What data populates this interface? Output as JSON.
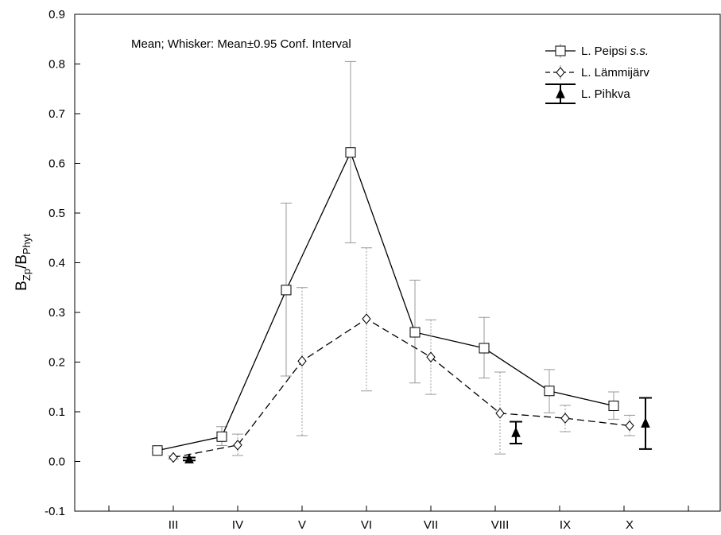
{
  "chart_data": {
    "type": "line",
    "subtitle": "Mean; Whisker: Mean±0.95 Conf. Interval",
    "ylabel": {
      "main": "B",
      "sub1": "Zp",
      "sep": "/B",
      "sub2": "Phyt"
    },
    "xlabel": "",
    "ylim": [
      -0.1,
      0.9
    ],
    "yticks": [
      "-0.1",
      "0.0",
      "0.1",
      "0.2",
      "0.3",
      "0.4",
      "0.5",
      "0.6",
      "0.7",
      "0.8",
      "0.9"
    ],
    "categories": [
      "III",
      "IV",
      "V",
      "VI",
      "VII",
      "VIII",
      "IX",
      "X"
    ],
    "grid": false,
    "legend_position": "top-right",
    "series": [
      {
        "name": "L. Peipsi",
        "name_italic": "s.s.",
        "marker": "square",
        "line": "solid",
        "mean": [
          0.022,
          0.05,
          0.345,
          0.622,
          0.26,
          0.228,
          0.142,
          0.112
        ],
        "lower": [
          0.018,
          0.032,
          0.172,
          0.44,
          0.158,
          0.168,
          0.098,
          0.085
        ],
        "upper": [
          0.026,
          0.07,
          0.52,
          0.805,
          0.365,
          0.29,
          0.185,
          0.14
        ]
      },
      {
        "name": "L. Lämmijärv",
        "marker": "diamond",
        "line": "dashed",
        "mean": [
          0.008,
          0.033,
          0.202,
          0.287,
          0.21,
          0.097,
          0.087,
          0.072
        ],
        "lower": [
          0.005,
          0.012,
          0.052,
          0.142,
          0.135,
          0.015,
          0.06,
          0.052
        ],
        "upper": [
          0.011,
          0.055,
          0.35,
          0.43,
          0.285,
          0.18,
          0.113,
          0.093
        ]
      },
      {
        "name": "L. Pihkva",
        "marker": "triangle",
        "line": "none",
        "categories": [
          "III",
          "VIII",
          "X"
        ],
        "mean": [
          0.005,
          0.058,
          0.077
        ],
        "lower": [
          0.002,
          0.036,
          0.025
        ],
        "upper": [
          0.008,
          0.08,
          0.128
        ]
      }
    ]
  }
}
